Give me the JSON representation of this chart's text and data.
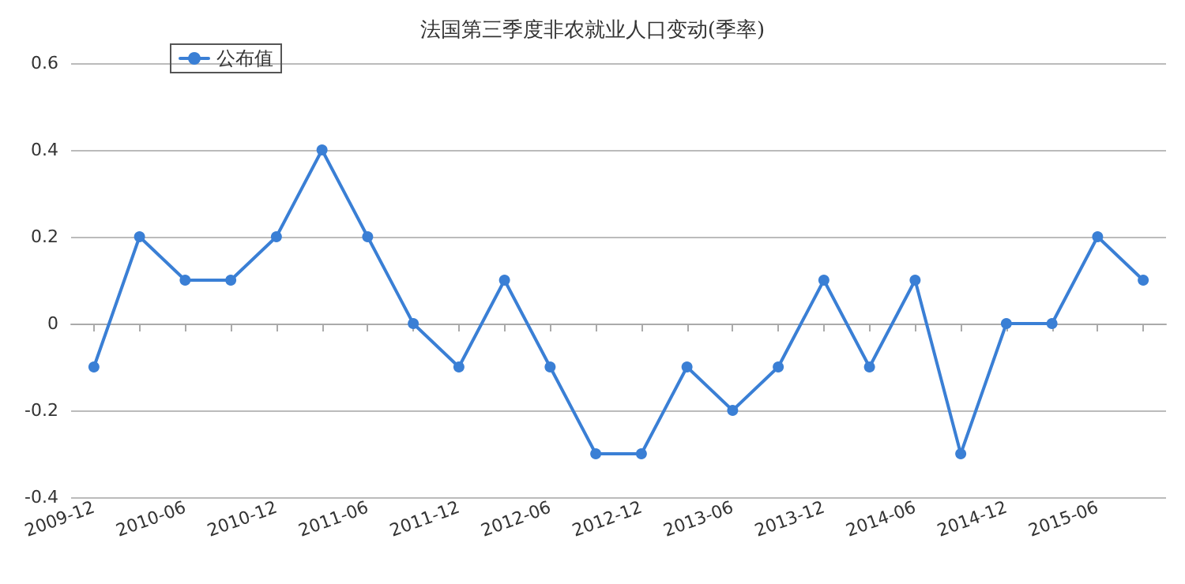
{
  "chart_data": {
    "type": "line",
    "title": "法国第三季度非农就业人口变动(季率)",
    "categories": [
      "2009-12",
      null,
      "2010-06",
      null,
      "2010-12",
      null,
      "2011-06",
      null,
      "2011-12",
      null,
      "2012-06",
      null,
      "2012-12",
      null,
      "2013-06",
      null,
      "2013-12",
      null,
      "2014-06",
      null,
      "2014-12",
      null,
      "2015-06",
      null
    ],
    "series": [
      {
        "name": "公布值",
        "color": "#3a7fd5",
        "values": [
          -0.1,
          0.2,
          0.1,
          0.1,
          0.2,
          0.4,
          0.2,
          0,
          -0.1,
          0.1,
          -0.1,
          -0.3,
          -0.3,
          -0.1,
          -0.2,
          -0.1,
          0.1,
          -0.1,
          0.1,
          -0.3,
          0,
          0,
          0.2,
          0.1
        ]
      }
    ],
    "ylim": [
      -0.4,
      0.6
    ],
    "yticks": [
      -0.4,
      -0.2,
      0,
      0.2,
      0.4,
      0.6
    ],
    "grid": "y",
    "legend": "top left",
    "marker": "circle",
    "line_style": "solid"
  }
}
